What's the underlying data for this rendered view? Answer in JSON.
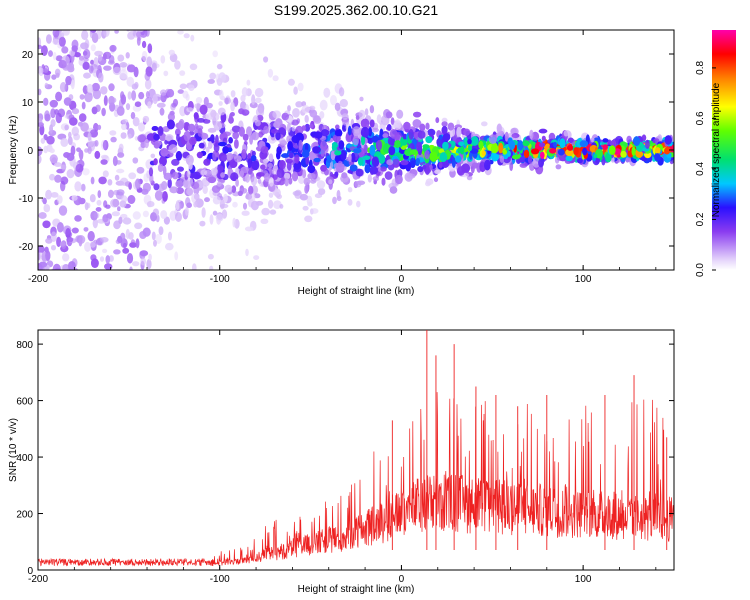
{
  "title": "S199.2025.362.00.10.G21",
  "colors": {
    "snr_line": "#ee2222",
    "axis": "#000000",
    "background": "#ffffff"
  },
  "chart_data": [
    {
      "type": "heatmap",
      "panel": "top",
      "xlabel": "Height of straight line (km)",
      "ylabel": "Frequency (Hz)",
      "xlim": [
        -200,
        150
      ],
      "ylim": [
        -25,
        25
      ],
      "x_ticks": [
        -200,
        -100,
        0,
        100
      ],
      "x_tick_labels": [
        "-200",
        "-100",
        "0",
        "100"
      ],
      "y_ticks": [
        -20,
        -10,
        0,
        10,
        20
      ],
      "y_tick_labels": [
        "-20",
        "-10",
        "0",
        "10",
        "20"
      ],
      "colormap": "rainbow (white-violet-blue-cyan-green-yellow-red-magenta)",
      "colorbar": {
        "label": "Normalized spectral amplitude",
        "range": [
          0.0,
          0.95
        ],
        "ticks": [
          0.0,
          0.2,
          0.4,
          0.6,
          0.8
        ],
        "tick_labels": [
          "0.0",
          "0.2",
          "0.4",
          "0.6",
          "0.8"
        ]
      },
      "description_profile": [
        {
          "x_range": [
            -200,
            -90
          ],
          "frequency_spread_hz": 25,
          "typical_amplitude": 0.1
        },
        {
          "x_range": [
            -90,
            -30
          ],
          "frequency_spread_hz": 12,
          "typical_amplitude": 0.12
        },
        {
          "x_range": [
            -30,
            60
          ],
          "frequency_spread_hz": 5,
          "typical_amplitude": 0.3
        },
        {
          "x_range": [
            60,
            150
          ],
          "frequency_spread_hz": 2,
          "typical_amplitude": 0.4
        }
      ]
    },
    {
      "type": "line",
      "panel": "bottom",
      "series_name": "SNR",
      "xlabel": "Height of straight line (km)",
      "ylabel": "SNR (10 * v/v)",
      "xlim": [
        -200,
        150
      ],
      "ylim": [
        0,
        850
      ],
      "x_ticks": [
        -200,
        -100,
        0,
        100
      ],
      "x_tick_labels": [
        "-200",
        "-100",
        "0",
        "100"
      ],
      "y_ticks": [
        0,
        200,
        400,
        600,
        800
      ],
      "y_tick_labels": [
        "0",
        "200",
        "400",
        "600",
        "800"
      ],
      "envelope": {
        "x": [
          -200,
          -110,
          -90,
          -70,
          -50,
          -30,
          -10,
          0,
          10,
          20,
          40,
          60,
          80,
          100,
          120,
          140,
          150
        ],
        "mean_snr": [
          25,
          25,
          30,
          60,
          90,
          120,
          170,
          200,
          230,
          240,
          230,
          220,
          210,
          200,
          190,
          180,
          180
        ],
        "upper_snr": [
          40,
          50,
          80,
          180,
          220,
          290,
          480,
          560,
          620,
          660,
          600,
          600,
          600,
          600,
          590,
          620,
          470
        ]
      },
      "peaks": [
        {
          "x": -5,
          "snr": 530
        },
        {
          "x": 14,
          "snr": 850
        },
        {
          "x": 19,
          "snr": 760
        },
        {
          "x": 29,
          "snr": 800
        },
        {
          "x": 41,
          "snr": 650
        },
        {
          "x": 52,
          "snr": 620
        },
        {
          "x": 64,
          "snr": 580
        },
        {
          "x": 80,
          "snr": 620
        },
        {
          "x": 112,
          "snr": 620
        },
        {
          "x": 128,
          "snr": 690
        },
        {
          "x": 146,
          "snr": 470
        }
      ]
    }
  ]
}
